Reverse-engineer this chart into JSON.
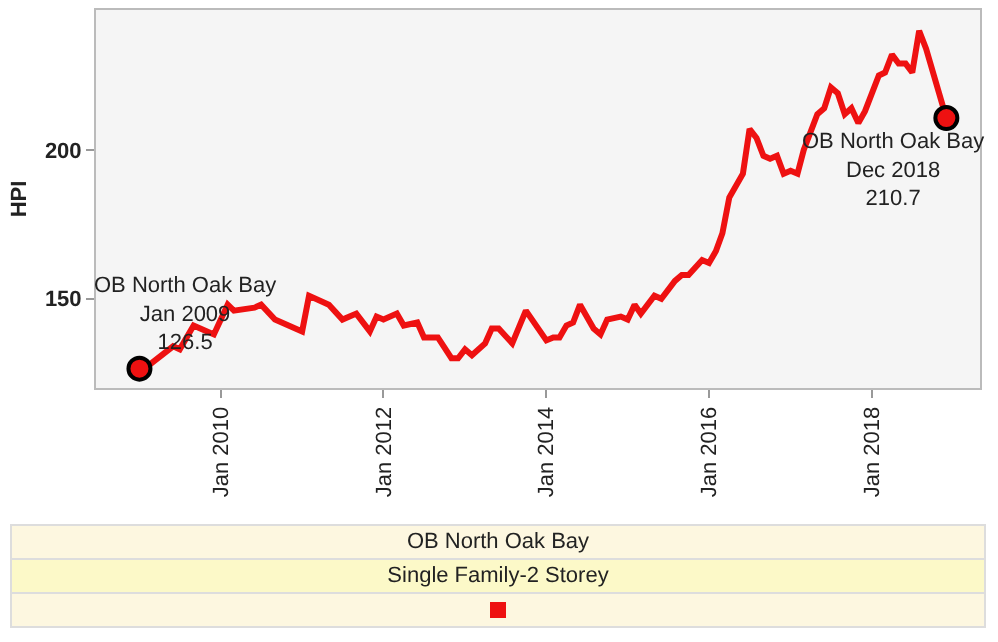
{
  "chart_data": {
    "type": "line",
    "ylabel": "HPI",
    "legend_title": "OB North Oak Bay",
    "legend": "bottom",
    "grid": false,
    "marker": "none",
    "line_style": "solid",
    "xlim": [
      "2008-06-20",
      "2019-05-01"
    ],
    "ylim": [
      120,
      247
    ],
    "yticks": [
      150,
      200
    ],
    "xticks": [
      {
        "value": "2010-01",
        "label": "Jan 2010"
      },
      {
        "value": "2012-01",
        "label": "Jan 2012"
      },
      {
        "value": "2014-01",
        "label": "Jan 2014"
      },
      {
        "value": "2016-01",
        "label": "Jan 2016"
      },
      {
        "value": "2018-01",
        "label": "Jan 2018"
      }
    ],
    "x": [
      "2009-01",
      "2009-02",
      "2009-06",
      "2009-07",
      "2009-09",
      "2009-10",
      "2009-12",
      "2010-02",
      "2010-03",
      "2010-06",
      "2010-07",
      "2010-09",
      "2010-11",
      "2011-01",
      "2011-02",
      "2011-05",
      "2011-07",
      "2011-09",
      "2011-11",
      "2011-12",
      "2012-01",
      "2012-03",
      "2012-04",
      "2012-06",
      "2012-07",
      "2012-09",
      "2012-11",
      "2012-12",
      "2013-01",
      "2013-02",
      "2013-04",
      "2013-05",
      "2013-06",
      "2013-08",
      "2013-10",
      "2014-01",
      "2014-02",
      "2014-03",
      "2014-04",
      "2014-05",
      "2014-06",
      "2014-08",
      "2014-09",
      "2014-10",
      "2014-12",
      "2015-01",
      "2015-02",
      "2015-03",
      "2015-05",
      "2015-06",
      "2015-08",
      "2015-09",
      "2015-10",
      "2015-12",
      "2016-01",
      "2016-02",
      "2016-03",
      "2016-04",
      "2016-06",
      "2016-07",
      "2016-08",
      "2016-09",
      "2016-10",
      "2016-11",
      "2016-12",
      "2017-01",
      "2017-02",
      "2017-03",
      "2017-05",
      "2017-06",
      "2017-07",
      "2017-08",
      "2017-09",
      "2017-10",
      "2017-11",
      "2017-12",
      "2018-02",
      "2018-03",
      "2018-04",
      "2018-05",
      "2018-06",
      "2018-07",
      "2018-08",
      "2018-09",
      "2018-12"
    ],
    "series": [
      {
        "name": "Single Family-2 Storey",
        "color": "#ee1111",
        "values": [
          126.5,
          127,
          134,
          133,
          141,
          140,
          138,
          148,
          146,
          147,
          148,
          143,
          141,
          139,
          151,
          148,
          143,
          145,
          139,
          144,
          143,
          145,
          141,
          142,
          137,
          137,
          130,
          130,
          133,
          131,
          135,
          140,
          140,
          135,
          146,
          136,
          137,
          137,
          141,
          142,
          148,
          140,
          138,
          143,
          144,
          143,
          148,
          145,
          151,
          150,
          156,
          158,
          158,
          163,
          162,
          166,
          172,
          184,
          192,
          207,
          204,
          198,
          197,
          198,
          192,
          193,
          192,
          200,
          212,
          214,
          221,
          219,
          212,
          214,
          209,
          213,
          225,
          226,
          232,
          229,
          229,
          226,
          240,
          234,
          210.7
        ]
      }
    ],
    "annotations": [
      {
        "text": "OB North Oak Bay\nJan 2009\n126.5",
        "x": "2009-01",
        "y": 126.5
      },
      {
        "text": "OB North Oak Bay\nDec 2018\n210.7",
        "x": "2018-12",
        "y": 210.7
      }
    ]
  }
}
